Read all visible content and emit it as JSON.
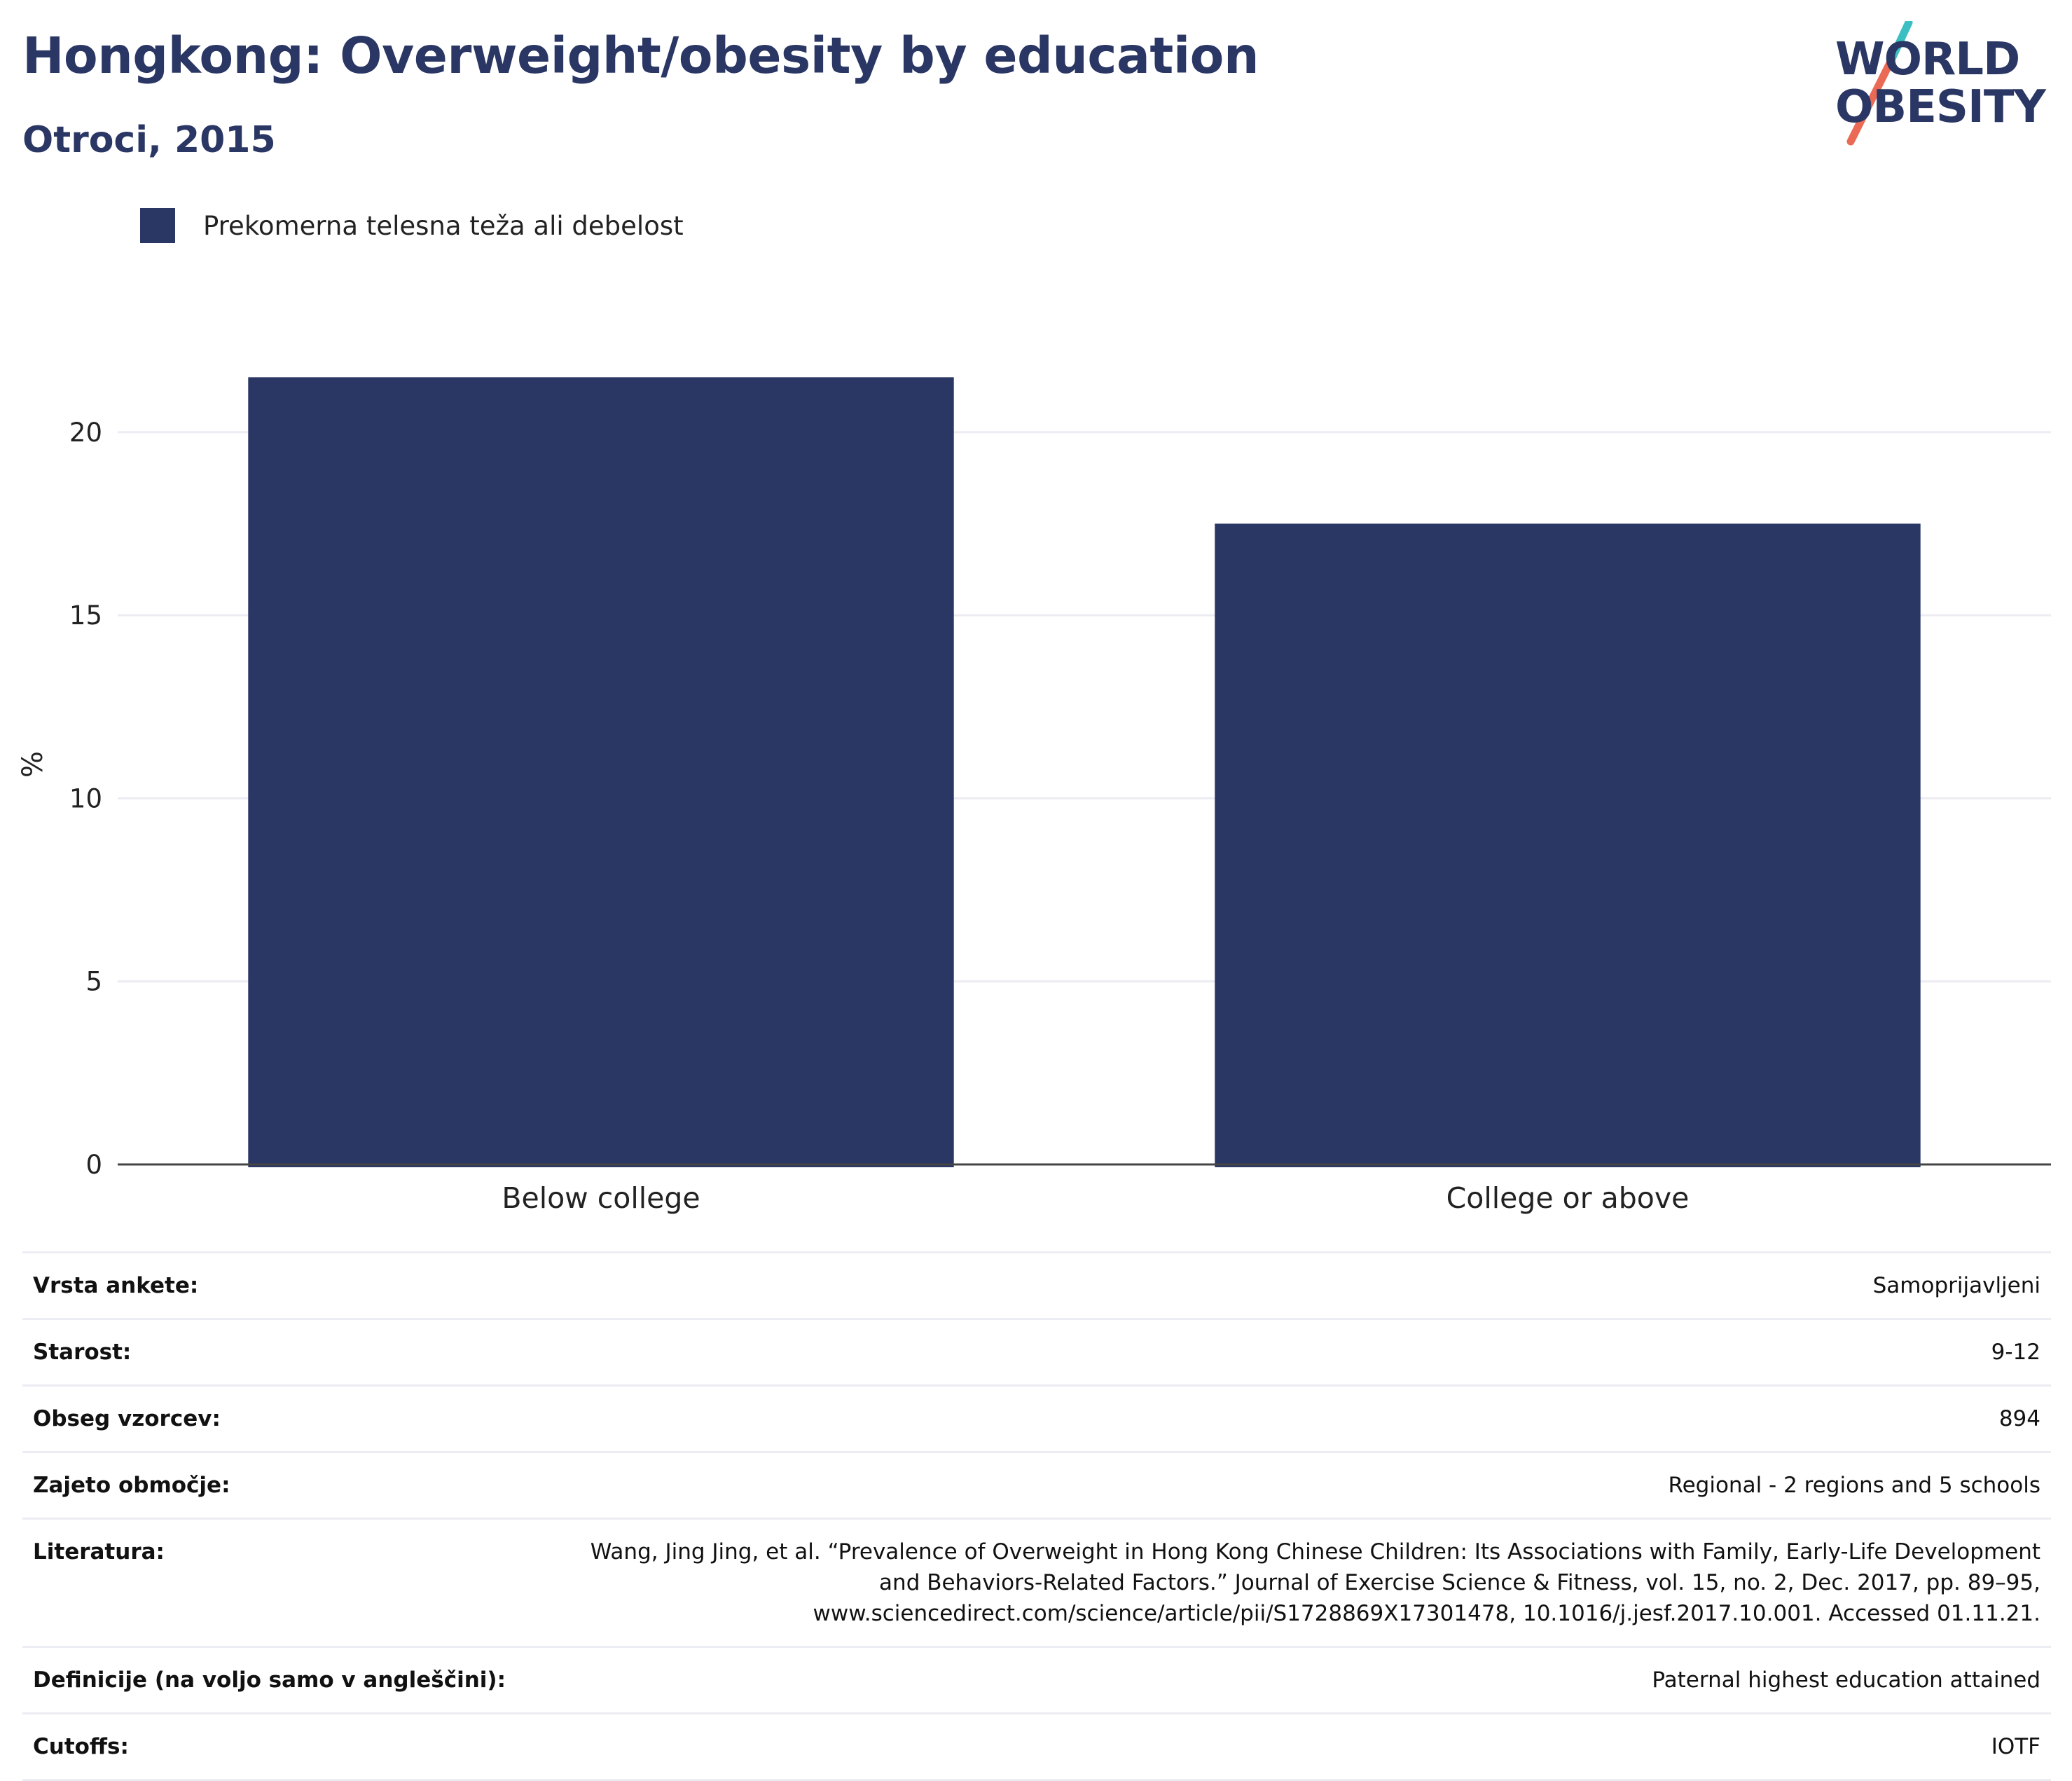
{
  "header": {
    "title": "Hongkong: Overweight/obesity by education",
    "subtitle": "Otroci, 2015"
  },
  "logo": {
    "line1": "WORLD",
    "line2": "OBESITY"
  },
  "colors": {
    "bar": "#2a3663",
    "grid": "#ececf3",
    "accent_teal": "#3bbfc2",
    "accent_red": "#ea6a55"
  },
  "chart_data": {
    "type": "bar",
    "categories": [
      "Below college",
      "College or above"
    ],
    "series": [
      {
        "name": "Prekomerna telesna teža ali debelost",
        "values": [
          21.5,
          17.5
        ]
      }
    ],
    "ylabel": "%",
    "xlabel": "",
    "ylim": [
      0,
      23
    ],
    "yticks": [
      0,
      5,
      10,
      15,
      20
    ],
    "grid": true,
    "legend": "top-left"
  },
  "info_rows": [
    {
      "label": "Vrsta ankete:",
      "value": "Samoprijavljeni"
    },
    {
      "label": "Starost:",
      "value": "9-12"
    },
    {
      "label": "Obseg vzorcev:",
      "value": "894"
    },
    {
      "label": "Zajeto območje:",
      "value": "Regional - 2 regions and 5 schools"
    },
    {
      "label": "Literatura:",
      "value": "Wang, Jing Jing, et al. “Prevalence of Overweight in Hong Kong Chinese Children: Its Associations with Family, Early-Life Development and Behaviors-Related Factors.” Journal of Exercise Science & Fitness, vol. 15, no. 2, Dec. 2017, pp. 89–95, www.sciencedirect.com/science/article/pii/S1728869X17301478, 10.1016/j.jesf.2017.10.001. Accessed 01.11.21."
    },
    {
      "label": "Definicije (na voljo samo v angleščini):",
      "value": "Paternal highest education attained"
    },
    {
      "label": "Cutoffs:",
      "value": "IOTF"
    }
  ]
}
